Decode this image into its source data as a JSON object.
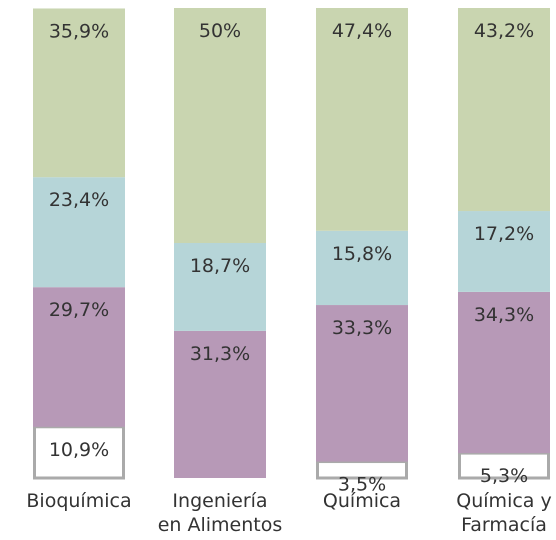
{
  "chart_data": {
    "type": "stacked_bar",
    "categories": [
      [
        "Bioquímica"
      ],
      [
        "Ingeniería",
        "en Alimentos"
      ],
      [
        "Química"
      ],
      [
        "Química y",
        "Farmacía"
      ]
    ],
    "ylim": [
      0,
      100
    ],
    "series": [
      {
        "color": "#ffffff",
        "values": [
          10.9,
          0,
          3.5,
          5.3
        ],
        "value_labels": [
          "10,9%",
          null,
          "3,5%",
          "5,3%"
        ]
      },
      {
        "color": "#b799b7",
        "values": [
          29.7,
          31.3,
          33.3,
          34.3
        ],
        "value_labels": [
          "29,7%",
          "31,3%",
          "33,3%",
          "34,3%"
        ]
      },
      {
        "color": "#b6d5d8",
        "values": [
          23.4,
          18.7,
          15.8,
          17.2
        ],
        "value_labels": [
          "23,4%",
          "18,7%",
          "15,8%",
          "17,2%"
        ]
      },
      {
        "color": "#c9d5b0",
        "values": [
          35.9,
          50,
          47.4,
          43.2
        ],
        "value_labels": [
          "35,9%",
          "50%",
          "47,4%",
          "43,2%"
        ]
      }
    ]
  }
}
